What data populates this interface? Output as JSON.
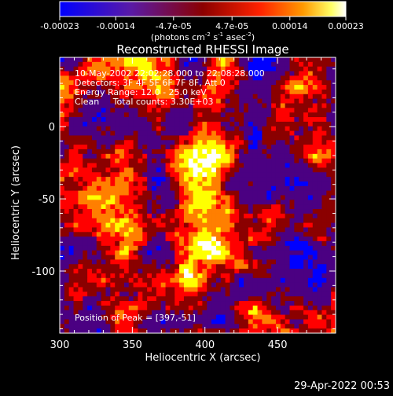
{
  "colorbar": {
    "tick_labels": [
      "-0.00023",
      "-0.00014",
      "-4.7e-05",
      "4.7e-05",
      "0.00014",
      "0.00023"
    ],
    "min": -0.00023,
    "max": 0.00023,
    "unit_label": "(photons cm",
    "unit_exp1": "-2",
    "unit_mid": " s",
    "unit_exp2": "-1",
    "unit_tail": " asec",
    "unit_exp3": "-2",
    "unit_close": ")"
  },
  "chart_data": {
    "type": "heatmap",
    "title": "Reconstructed RHESSI Image",
    "xlabel": "Heliocentric X (arcsec)",
    "ylabel": "Heliocentric Y (arcsec)",
    "xlim": [
      300,
      490
    ],
    "ylim": [
      -143,
      48
    ],
    "x_ticks": [
      300,
      350,
      400,
      450
    ],
    "y_ticks": [
      0,
      -50,
      -100
    ],
    "annotations": [
      "10-May-2002 22:02:28.000 to 22:08:28.000",
      "Detectors: 3F 4F 5F 6F 7F 8F, Att 0",
      "Energy Range: 12.0 - 25.0 keV",
      "Clean     Total counts: 3.30E+03"
    ],
    "peak_label": "Position of Peak = [397,-51]",
    "peak": {
      "x": 397,
      "y": -51
    },
    "colormap": [
      "#0000ff",
      "#4b0082",
      "#8b0000",
      "#ff0000",
      "#ff7f00",
      "#ffff00",
      "#ffffff"
    ]
  },
  "footer_timestamp": "29-Apr-2022 00:53"
}
